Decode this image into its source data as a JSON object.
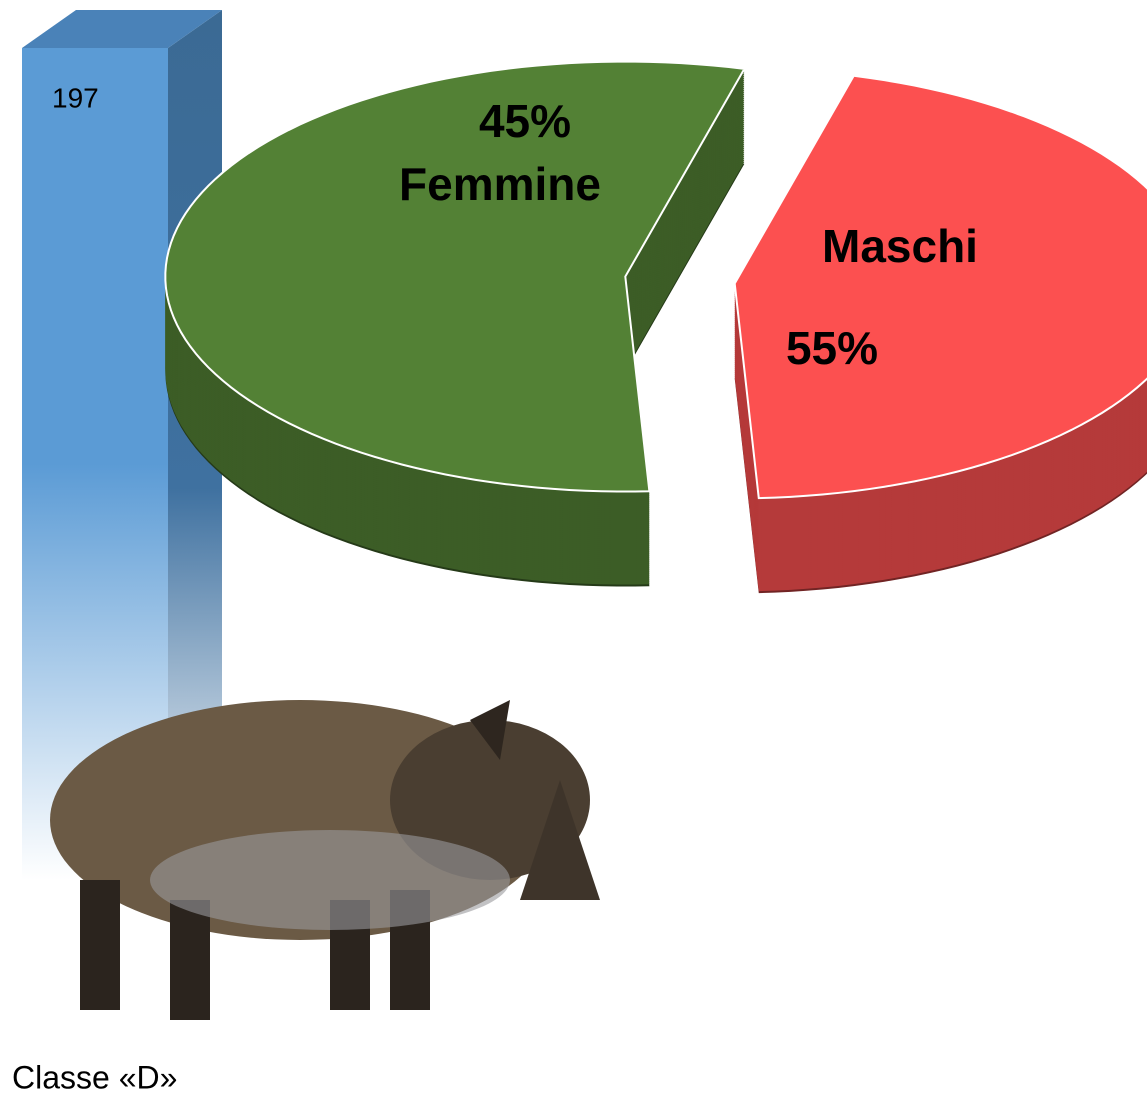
{
  "chart_data": [
    {
      "type": "bar",
      "categories": [
        "Classe «D»"
      ],
      "values": [
        197
      ],
      "color": "#5b9bd5"
    },
    {
      "type": "pie",
      "categories": [
        "Femmine",
        "Maschi"
      ],
      "values": [
        45,
        55
      ],
      "value_labels": [
        "45%",
        "55%"
      ],
      "colors": [
        "#fc5050",
        "#538135"
      ]
    }
  ]
}
